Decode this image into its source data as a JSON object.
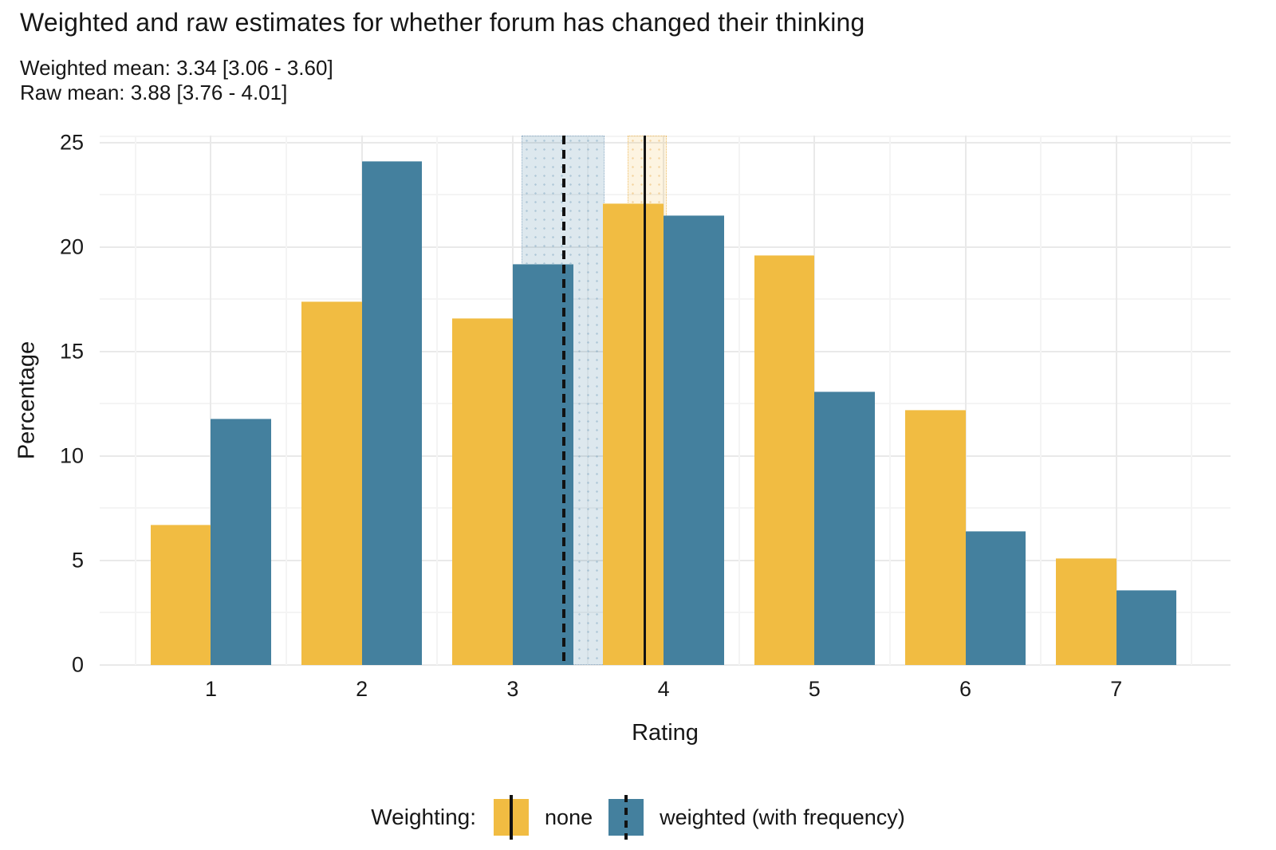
{
  "title": "Weighted and raw estimates for whether forum has changed their thinking",
  "subtitle": {
    "weighted": "Weighted mean: 3.34 [3.06 - 3.60]",
    "raw": "Raw mean: 3.88 [3.76 - 4.01]"
  },
  "chart_data": {
    "type": "bar",
    "title": "Weighted and raw estimates for whether forum has changed their thinking",
    "xlabel": "Rating",
    "ylabel": "Percentage",
    "categories": [
      1,
      2,
      3,
      4,
      5,
      6,
      7
    ],
    "series": [
      {
        "name": "none",
        "color": "#F1BC42",
        "values": [
          6.7,
          17.4,
          16.6,
          22.1,
          19.6,
          12.2,
          5.1
        ]
      },
      {
        "name": "weighted (with frequency)",
        "color": "#44809E",
        "values": [
          11.8,
          24.1,
          19.2,
          21.5,
          13.1,
          6.4,
          3.6
        ]
      }
    ],
    "yticks": [
      0,
      5,
      10,
      15,
      20,
      25
    ],
    "ylim": [
      0,
      25.33
    ],
    "x_domain": [
      0.263,
      7.757
    ],
    "bar_half_width": 0.4,
    "grid": true,
    "legend_position": "bottom",
    "annotations": {
      "weighted_mean": {
        "label": "Weighted mean",
        "value": 3.34,
        "ci": [
          3.06,
          3.6
        ],
        "line_style": "dashed",
        "band_color": "rgba(68,128,158,0.18)",
        "band_dot_color": "rgba(90,140,175,0.35)",
        "border_color": "rgba(125,160,190,0.75)"
      },
      "raw_mean": {
        "label": "Raw mean",
        "value": 3.88,
        "ci": [
          3.76,
          4.01
        ],
        "line_style": "solid",
        "band_color": "rgba(242,188,66,0.16)",
        "band_dot_color": "rgba(230,170,70,0.4)",
        "border_color": "rgba(235,175,70,0.75)"
      }
    },
    "line_color": "#121212",
    "grid_major_color": "#e9e9e9",
    "grid_minor_color": "#f4f4f4"
  },
  "legend": {
    "title": "Weighting:",
    "items": [
      {
        "label": "none",
        "swatch_color": "#F1BC42",
        "line_style": "solid"
      },
      {
        "label": "weighted (with frequency)",
        "swatch_color": "#44809E",
        "line_style": "dashed"
      }
    ]
  }
}
